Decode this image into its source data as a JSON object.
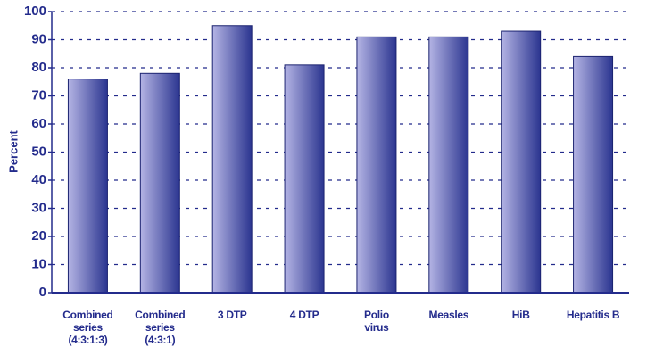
{
  "chart_data": {
    "type": "bar",
    "y_label": "Percent",
    "categories": [
      "Combined\nseries\n(4:3:1:3)",
      "Combined\nseries\n(4:3:1)",
      "3 DTP",
      "4 DTP",
      "Polio\nvirus",
      "Measles",
      "HiB",
      "Hepatitis B"
    ],
    "values": [
      76,
      78,
      95,
      81,
      91,
      91,
      93,
      84
    ],
    "color": "#2b3590",
    "ylim": [
      0,
      100
    ],
    "yticks": [
      0,
      10,
      20,
      30,
      40,
      50,
      60,
      70,
      80,
      90,
      100
    ],
    "grid": true
  }
}
